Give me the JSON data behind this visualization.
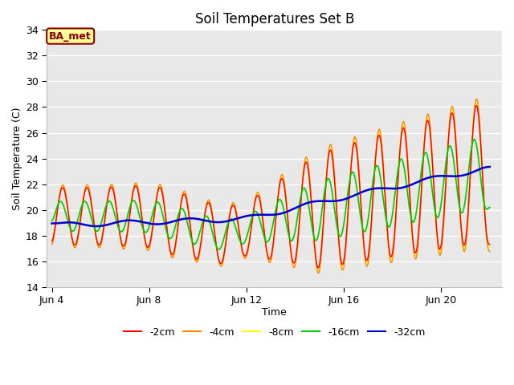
{
  "title": "Soil Temperatures Set B",
  "xlabel": "Time",
  "ylabel": "Soil Temperature (C)",
  "ylim": [
    14,
    34
  ],
  "background_color": "#e8e8e8",
  "annotation_label": "BA_met",
  "annotation_box_color": "#ffff99",
  "annotation_border_color": "#8b0000",
  "annotation_text_color": "#8b0000",
  "colors": {
    "-2cm": "#ff0000",
    "-4cm": "#ff8800",
    "-8cm": "#ffff00",
    "-16cm": "#00cc00",
    "-32cm": "#0000cc"
  },
  "legend_labels": [
    "-2cm",
    "-4cm",
    "-8cm",
    "-16cm",
    "-32cm"
  ],
  "xtick_labels": [
    "Jun 4",
    "Jun 8",
    "Jun 12",
    "Jun 16",
    "Jun 20"
  ],
  "xtick_positions": [
    0,
    4,
    8,
    12,
    16
  ]
}
